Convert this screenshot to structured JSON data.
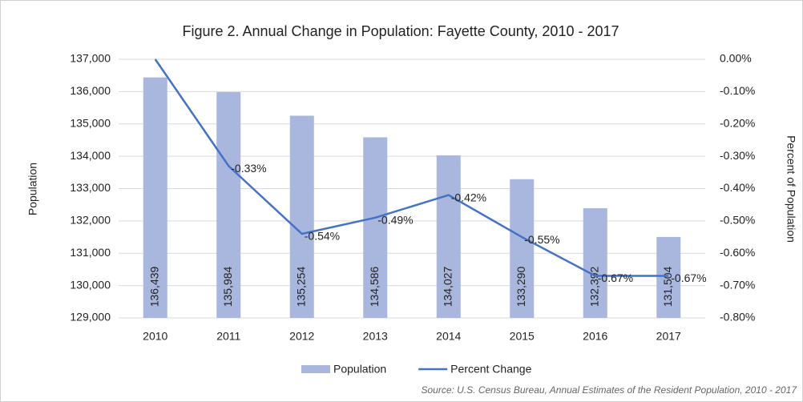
{
  "chart_data": {
    "type": "combo",
    "title": "Figure 2. Annual Change in Population: Fayette County, 2010 - 2017",
    "y_label": "Population",
    "y2_label": "Percent of Population",
    "source": "Source: U.S. Census Bureau, Annual Estimates of the Resident Population, 2010 - 2017",
    "categories": [
      "2010",
      "2011",
      "2012",
      "2013",
      "2014",
      "2015",
      "2016",
      "2017"
    ],
    "series": [
      {
        "name": "Population",
        "type": "bar",
        "color": "#a9b6de",
        "values": [
          136439,
          135984,
          135254,
          134586,
          134027,
          133290,
          132392,
          131504
        ],
        "value_labels": [
          "136,439",
          "135,984",
          "135,254",
          "134,586",
          "134,027",
          "133,290",
          "132,392",
          "131,504"
        ]
      },
      {
        "name": "Percent Change",
        "type": "line",
        "axis": "y2",
        "color": "#4472c4",
        "values": [
          0,
          -0.33,
          -0.54,
          -0.49,
          -0.42,
          -0.55,
          -0.67,
          -0.67
        ],
        "value_labels": [
          null,
          "-0.33%",
          "-0.54%",
          "-0.49%",
          "-0.42%",
          "-0.55%",
          "-0.67%",
          "-0.67%"
        ]
      }
    ],
    "ylim": [
      129000,
      137000
    ],
    "yticks": [
      {
        "value": 129000,
        "label": "129,000"
      },
      {
        "value": 130000,
        "label": "130,000"
      },
      {
        "value": 131000,
        "label": "131,000"
      },
      {
        "value": 132000,
        "label": "132,000"
      },
      {
        "value": 133000,
        "label": "133,000"
      },
      {
        "value": 134000,
        "label": "134,000"
      },
      {
        "value": 135000,
        "label": "135,000"
      },
      {
        "value": 136000,
        "label": "136,000"
      },
      {
        "value": 137000,
        "label": "137,000"
      }
    ],
    "y2lim": [
      -0.8,
      0
    ],
    "y2ticks": [
      {
        "value": -0.8,
        "label": "-0.80%"
      },
      {
        "value": -0.7,
        "label": "-0.70%"
      },
      {
        "value": -0.6,
        "label": "-0.60%"
      },
      {
        "value": -0.5,
        "label": "-0.50%"
      },
      {
        "value": -0.4,
        "label": "-0.40%"
      },
      {
        "value": -0.3,
        "label": "-0.30%"
      },
      {
        "value": -0.2,
        "label": "-0.20%"
      },
      {
        "value": -0.1,
        "label": "-0.10%"
      },
      {
        "value": 0,
        "label": "0.00%"
      }
    ],
    "grid": true
  }
}
